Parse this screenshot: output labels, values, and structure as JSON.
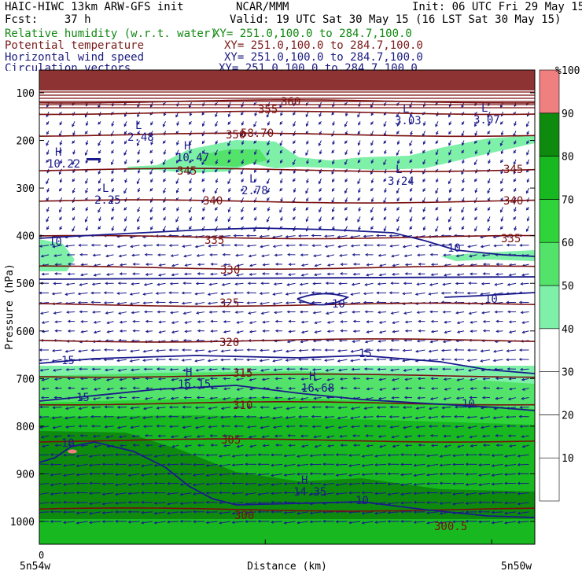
{
  "header": {
    "line1_left": "HAIC-HIWC 13km ARW-GFS init",
    "line1_mid": "NCAR/MMM",
    "line1_right": "Init: 06 UTC Fri 29 May 15",
    "line2_left": "Fcst:    37 h",
    "line2_right": "Valid: 19 UTC Sat 30 May 15 (16 LST Sat 30 May 15)"
  },
  "fields": [
    {
      "name": "Relative humidity (w.r.t. water)",
      "xy": "XY= 251.0,100.0 to 284.7,100.0",
      "color": "#118811"
    },
    {
      "name": "Potential temperature",
      "xy": "XY= 251.0,100.0 to 284.7,100.0",
      "color": "#7a1a1a"
    },
    {
      "name": "Horizontal wind speed",
      "xy": "XY= 251.0,100.0 to 284.7,100.0",
      "color": "#1a1a80"
    },
    {
      "name": "Circulation vectors",
      "xy": "XY= 251.0,100.0 to 284.7,100.0",
      "color": "#1a1a80"
    }
  ],
  "colors": {
    "theta": "#7a0f0f",
    "wind": "#1a1a8c",
    "vectors": "#1a1a8c",
    "rh_50": "#7ef0a8",
    "rh_60": "#54e36a",
    "rh_70": "#2fd43a",
    "rh_80": "#18b820",
    "rh_90": "#0e8a0e",
    "rh_100": "#f08080"
  },
  "chart_data": {
    "type": "heatmap",
    "ylabel": "Pressure (hPa)",
    "xlabel": "Distance (km)",
    "x_start_label": "0",
    "x_left_label": "5n54w",
    "x_right_label": "5n50w",
    "y_ticks": [
      100,
      200,
      300,
      400,
      500,
      600,
      700,
      800,
      900,
      1000
    ],
    "ylim": [
      1050,
      70
    ],
    "colorbar": {
      "unit": "%",
      "ticks": [
        10,
        20,
        30,
        40,
        50,
        60,
        70,
        80,
        90,
        100
      ],
      "colors": [
        "#ffffff",
        "#ffffff",
        "#ffffff",
        "#ffffff",
        "#7ef0a8",
        "#54e36a",
        "#2fd43a",
        "#18b820",
        "#0e8a0e",
        "#f08080"
      ]
    },
    "theta_contours": [
      {
        "value": "360",
        "p": 118
      },
      {
        "value": "355",
        "p": 142
      },
      {
        "value": "350",
        "p": 188
      },
      {
        "value": "345",
        "p": 262
      },
      {
        "value": "340",
        "p": 328
      },
      {
        "value": "335",
        "p": 403
      },
      {
        "value": "330",
        "p": 467
      },
      {
        "value": "325",
        "p": 545
      },
      {
        "value": "320",
        "p": 620
      },
      {
        "value": "315",
        "p": 694
      },
      {
        "value": "310",
        "p": 752
      },
      {
        "value": "305",
        "p": 830
      },
      {
        "value": "300",
        "p": 975
      }
    ],
    "theta_labels": [
      "360",
      "355",
      "350",
      "345",
      "345",
      "340",
      "340",
      "335",
      "335",
      "330",
      "325",
      "320",
      "315",
      "310",
      "305",
      "300",
      "300.5"
    ],
    "wind_labels": [
      "10",
      "10",
      "10",
      "10",
      "15",
      "15",
      "15",
      "10",
      "10",
      "10"
    ],
    "extrema": [
      {
        "kind": "H",
        "value": "10.22"
      },
      {
        "kind": "L",
        "value": "2.48"
      },
      {
        "kind": "H",
        "value": "10.47"
      },
      {
        "kind": "L",
        "value": "2.25"
      },
      {
        "kind": "L",
        "value": "2.78"
      },
      {
        "kind": "L",
        "value": "3.03"
      },
      {
        "kind": "L",
        "value": "3.07"
      },
      {
        "kind": "L",
        "value": "3.24"
      },
      {
        "kind": "H",
        "value": "16.15"
      },
      {
        "kind": "H",
        "value": "16.68"
      },
      {
        "kind": "H",
        "value": "14.35"
      }
    ],
    "other_labels": [
      "58.70"
    ]
  }
}
